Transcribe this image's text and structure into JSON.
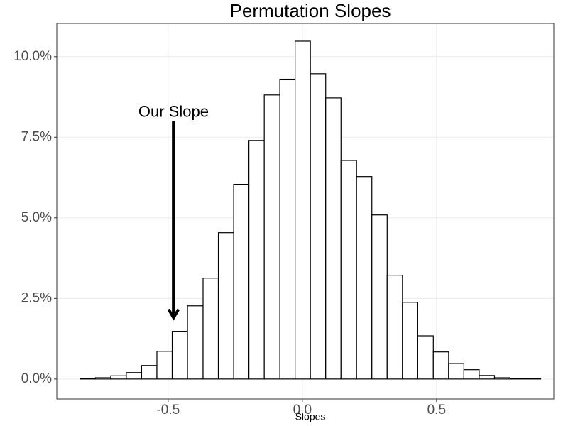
{
  "chart_data": {
    "type": "histogram",
    "title": "Permutation Slopes",
    "x_label": "Slopes",
    "bins": [
      -0.828,
      -0.771,
      -0.714,
      -0.656,
      -0.599,
      -0.542,
      -0.485,
      -0.428,
      -0.37,
      -0.313,
      -0.256,
      -0.199,
      -0.142,
      -0.084,
      -0.027,
      0.03,
      0.087,
      0.144,
      0.202,
      0.259,
      0.316,
      0.373,
      0.43,
      0.488,
      0.545,
      0.602,
      0.659,
      0.716,
      0.774,
      0.831,
      0.888
    ],
    "values": [
      0.02,
      0.04,
      0.1,
      0.2,
      0.42,
      0.86,
      1.48,
      2.27,
      3.13,
      4.54,
      6.04,
      7.4,
      8.81,
      9.3,
      10.48,
      9.47,
      8.72,
      6.78,
      6.28,
      5.09,
      3.22,
      2.38,
      1.34,
      0.84,
      0.48,
      0.29,
      0.11,
      0.04,
      0.02,
      0.02
    ],
    "fill": "#ffffff",
    "edge_color": "#000000",
    "xlim": [
      -0.915,
      0.937
    ],
    "ylim": [
      -0.62,
      11.03
    ],
    "xticks": [
      -0.5,
      {
        "value": 0,
        "label": "0.0"
      },
      0.5
    ],
    "yticks": [
      {
        "value": 0,
        "label": "0.0%"
      },
      {
        "value": 2.5,
        "label": "2.5%"
      },
      {
        "value": 5,
        "label": "5.0%"
      },
      {
        "value": 7.5,
        "label": "7.5%"
      },
      {
        "value": 10,
        "label": "10.0%"
      }
    ],
    "grid": true,
    "annotation": {
      "text": "Our Slope",
      "x": -0.48,
      "y_start": 8.0,
      "y_end": 1.9
    }
  }
}
